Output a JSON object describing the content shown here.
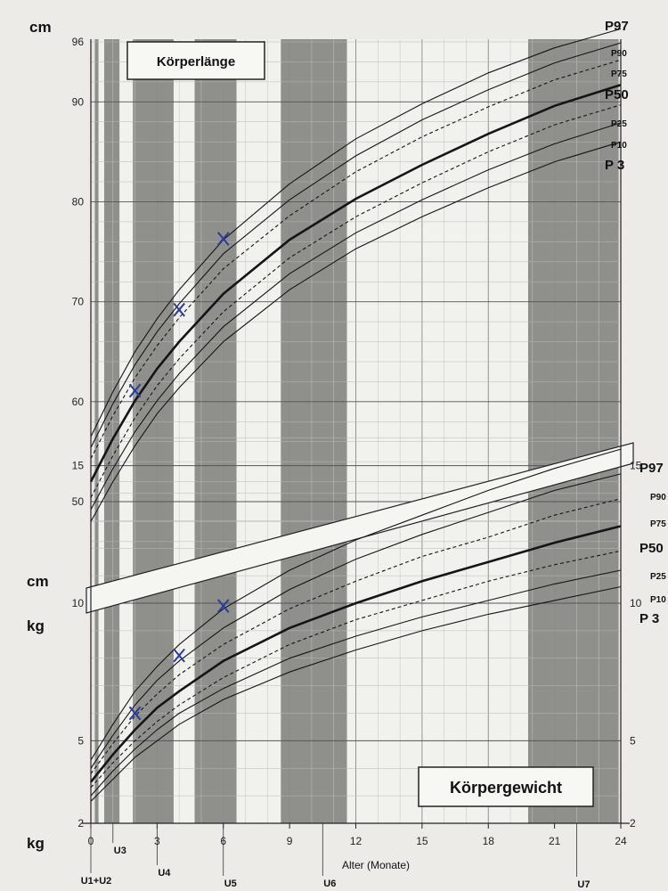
{
  "chart_data": {
    "type": "line",
    "xlabel": "Alter (Monate)",
    "x_ticks": [
      "0",
      "3",
      "6",
      "9",
      "12",
      "15",
      "18",
      "21",
      "24"
    ],
    "x_range": [
      0,
      24
    ],
    "checkups": [
      {
        "name": "U1+U2",
        "month": 0
      },
      {
        "name": "U3",
        "month": 1
      },
      {
        "name": "U4",
        "month": 3
      },
      {
        "name": "U5",
        "month": 6
      },
      {
        "name": "U6",
        "month": 10.5
      },
      {
        "name": "U7",
        "month": 22
      }
    ],
    "length": {
      "title": "Körperlänge",
      "unit": "cm",
      "y_range": [
        45,
        96
      ],
      "y_ticks": [
        "50",
        "60",
        "70",
        "80",
        "90",
        "96"
      ],
      "x": [
        0,
        1,
        2,
        3,
        4,
        6,
        9,
        12,
        15,
        18,
        21,
        24
      ],
      "percentiles": [
        {
          "name": "P97",
          "label_style": "big",
          "dashed": false,
          "bold": false,
          "values": [
            56.5,
            61,
            65,
            68.3,
            71.2,
            76.2,
            81.8,
            86.3,
            89.8,
            92.9,
            95.4,
            97.3
          ]
        },
        {
          "name": "P90",
          "label_style": "small",
          "dashed": false,
          "bold": false,
          "values": [
            55.4,
            59.8,
            63.7,
            67,
            69.8,
            74.8,
            80.2,
            84.6,
            88.2,
            91.2,
            93.9,
            95.9
          ]
        },
        {
          "name": "P75",
          "label_style": "small",
          "dashed": true,
          "bold": false,
          "values": [
            54.3,
            58.6,
            62.4,
            65.6,
            68.4,
            73.3,
            78.6,
            83,
            86.5,
            89.5,
            92.2,
            94.2
          ]
        },
        {
          "name": "P50",
          "label_style": "big",
          "dashed": false,
          "bold": true,
          "values": [
            52,
            56.3,
            60.1,
            63.3,
            66,
            70.8,
            76.2,
            80.3,
            83.7,
            86.8,
            89.6,
            91.7
          ]
        },
        {
          "name": "P25",
          "label_style": "small",
          "dashed": true,
          "bold": false,
          "values": [
            50.4,
            54.6,
            58.4,
            61.6,
            64.3,
            69,
            74.4,
            78.5,
            81.9,
            85,
            87.7,
            89.7
          ]
        },
        {
          "name": "P10",
          "label_style": "small",
          "dashed": false,
          "bold": false,
          "values": [
            49.2,
            53.3,
            57,
            60.1,
            62.8,
            67.5,
            72.8,
            76.9,
            80.2,
            83.2,
            85.8,
            87.9
          ]
        },
        {
          "name": "P 3",
          "label_style": "big",
          "dashed": false,
          "bold": false,
          "values": [
            48,
            52,
            55.6,
            58.8,
            61.4,
            66,
            71.2,
            75.3,
            78.5,
            81.4,
            84,
            86
          ]
        }
      ],
      "measurements": [
        {
          "x": 2,
          "y": 61.1
        },
        {
          "x": 4,
          "y": 69.2
        },
        {
          "x": 6,
          "y": 76.3
        }
      ]
    },
    "weight": {
      "title": "Körpergewicht",
      "unit": "kg",
      "y_range": [
        2,
        16.5
      ],
      "y_ticks": [
        "2",
        "5",
        "10",
        "15"
      ],
      "x": [
        0,
        1,
        2,
        3,
        4,
        6,
        9,
        12,
        15,
        18,
        21,
        24
      ],
      "percentiles": [
        {
          "name": "P97",
          "label_style": "big",
          "dashed": false,
          "bold": false,
          "values": [
            4.3,
            5.6,
            6.8,
            7.7,
            8.5,
            9.8,
            11.2,
            12.3,
            13.2,
            14.1,
            14.9,
            15.6
          ]
        },
        {
          "name": "P90",
          "label_style": "small",
          "dashed": false,
          "bold": false,
          "values": [
            4.0,
            5.2,
            6.3,
            7.2,
            7.9,
            9.1,
            10.5,
            11.6,
            12.5,
            13.3,
            14.1,
            14.7
          ]
        },
        {
          "name": "P75",
          "label_style": "small",
          "dashed": true,
          "bold": false,
          "values": [
            3.8,
            4.9,
            5.9,
            6.7,
            7.4,
            8.5,
            9.8,
            10.8,
            11.7,
            12.4,
            13.2,
            13.8
          ]
        },
        {
          "name": "P50",
          "label_style": "big",
          "dashed": false,
          "bold": true,
          "values": [
            3.5,
            4.5,
            5.4,
            6.2,
            6.8,
            7.9,
            9.1,
            10.0,
            10.8,
            11.5,
            12.2,
            12.8
          ]
        },
        {
          "name": "P25",
          "label_style": "small",
          "dashed": true,
          "bold": false,
          "values": [
            3.3,
            4.2,
            5.0,
            5.7,
            6.3,
            7.3,
            8.5,
            9.4,
            10.1,
            10.8,
            11.4,
            11.9
          ]
        },
        {
          "name": "P10",
          "label_style": "small",
          "dashed": false,
          "bold": false,
          "values": [
            3.0,
            3.9,
            4.7,
            5.4,
            6.0,
            6.9,
            8.0,
            8.8,
            9.5,
            10.1,
            10.7,
            11.2
          ]
        },
        {
          "name": "P 3",
          "label_style": "big",
          "dashed": false,
          "bold": false,
          "values": [
            2.8,
            3.6,
            4.4,
            5.0,
            5.6,
            6.5,
            7.5,
            8.3,
            9.0,
            9.6,
            10.1,
            10.6
          ]
        }
      ],
      "measurements": [
        {
          "x": 2,
          "y": 6.0
        },
        {
          "x": 4,
          "y": 8.1
        },
        {
          "x": 6,
          "y": 9.9
        }
      ]
    }
  }
}
